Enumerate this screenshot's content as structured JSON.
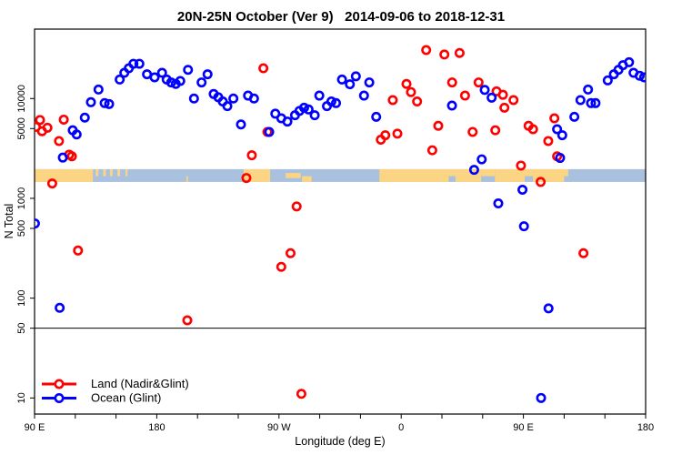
{
  "title": "20N-25N October (Ver 9)   2014-09-06 to 2018-12-31",
  "chart_data": {
    "type": "scatter",
    "xlabel": "Longitude (deg E)",
    "ylabel": "N Total",
    "x_axis": {
      "domain": [
        90,
        540
      ],
      "minor_tick_step": 30,
      "major_ticks": [
        {
          "lon": 90,
          "label": "90 E"
        },
        {
          "lon": 180,
          "label": "180"
        },
        {
          "lon": 270,
          "label": "90 W"
        },
        {
          "lon": 360,
          "label": "0"
        },
        {
          "lon": 450,
          "label": "90 E"
        },
        {
          "lon": 540,
          "label": "180"
        }
      ]
    },
    "y_axis": {
      "scale": "log",
      "domain": [
        6.9,
        49600
      ],
      "ticks": [
        {
          "v": 10000,
          "label": "10000"
        },
        {
          "v": 5000,
          "label": "5000"
        },
        {
          "v": 1000,
          "label": "1000"
        },
        {
          "v": 500,
          "label": "500"
        },
        {
          "v": 100,
          "label": "100"
        },
        {
          "v": 50,
          "label": "50"
        },
        {
          "v": 10,
          "label": "10"
        }
      ]
    },
    "reference_line": {
      "value": 50,
      "color": "#000000"
    },
    "land_ocean_band": {
      "value_range": [
        1460,
        1960
      ],
      "ocean_color": "#a9c0de",
      "land_color": "#fbd583",
      "land_segments": [
        {
          "from": 90,
          "to": 133,
          "part": "full"
        },
        {
          "from": 135,
          "to": 137,
          "part": "top"
        },
        {
          "from": 140.5,
          "to": 142.5,
          "part": "top"
        },
        {
          "from": 145.5,
          "to": 147.5,
          "part": "top"
        },
        {
          "from": 151,
          "to": 153,
          "part": "top"
        },
        {
          "from": 157,
          "to": 158.5,
          "part": "top"
        },
        {
          "from": 201.8,
          "to": 203,
          "part": "bottom"
        },
        {
          "from": 244,
          "to": 263.5,
          "part": "full"
        },
        {
          "from": 275,
          "to": 286,
          "part": "middle"
        },
        {
          "from": 287,
          "to": 294,
          "part": "bottom"
        },
        {
          "from": 344,
          "to": 395,
          "part": "full"
        },
        {
          "from": 395,
          "to": 400,
          "part": "top"
        },
        {
          "from": 400,
          "to": 419,
          "part": "full"
        },
        {
          "from": 419,
          "to": 429,
          "part": "top"
        },
        {
          "from": 429,
          "to": 451,
          "part": "full"
        },
        {
          "from": 451,
          "to": 457,
          "part": "top"
        },
        {
          "from": 457,
          "to": 480,
          "part": "full"
        },
        {
          "from": 480,
          "to": 483,
          "part": "top"
        }
      ]
    },
    "series": [
      {
        "name": "Land (Nadir&Glint)",
        "color": "#ff0000",
        "points": [
          [
            91,
            5200
          ],
          [
            94,
            6100
          ],
          [
            95.5,
            4700
          ],
          [
            99.5,
            5100
          ],
          [
            108,
            3750
          ],
          [
            111.5,
            6150
          ],
          [
            115.5,
            2740
          ],
          [
            117.5,
            2640
          ],
          [
            103,
            1410
          ],
          [
            122,
            300
          ],
          [
            202.5,
            60
          ],
          [
            246,
            1600
          ],
          [
            250,
            2700
          ],
          [
            258.5,
            20100
          ],
          [
            261.5,
            4630
          ],
          [
            271.7,
            206
          ],
          [
            278.5,
            282
          ],
          [
            283,
            830
          ],
          [
            286.5,
            11
          ],
          [
            345,
            3870
          ],
          [
            348.3,
            4290
          ],
          [
            353.8,
            9650
          ],
          [
            357.2,
            4450
          ],
          [
            363.9,
            14000
          ],
          [
            367.2,
            11600
          ],
          [
            371.7,
            9340
          ],
          [
            378.4,
            30600
          ],
          [
            382.9,
            3030
          ],
          [
            387.3,
            5330
          ],
          [
            391.8,
            27600
          ],
          [
            397.5,
            14500
          ],
          [
            403,
            28600
          ],
          [
            407,
            10700
          ],
          [
            412.6,
            4630
          ],
          [
            417,
            14500
          ],
          [
            429.3,
            4810
          ],
          [
            430.2,
            11800
          ],
          [
            434.9,
            10900
          ],
          [
            436,
            8090
          ],
          [
            442.7,
            9650
          ],
          [
            448.2,
            2130
          ],
          [
            453.8,
            5330
          ],
          [
            457.1,
            4930
          ],
          [
            462.7,
            1460
          ],
          [
            468.3,
            3750
          ],
          [
            472.8,
            6340
          ],
          [
            474.8,
            2640
          ],
          [
            494.2,
            282
          ]
        ]
      },
      {
        "name": "Ocean (Glint)",
        "color": "#0000ff",
        "points": [
          [
            90.3,
            560
          ],
          [
            108.5,
            80
          ],
          [
            110.8,
            2560
          ],
          [
            118.1,
            4810
          ],
          [
            121,
            4370
          ],
          [
            127,
            6440
          ],
          [
            131.5,
            9190
          ],
          [
            137.1,
            12300
          ],
          [
            141.6,
            9000
          ],
          [
            144.9,
            8810
          ],
          [
            152.7,
            15500
          ],
          [
            156.1,
            18100
          ],
          [
            159.4,
            20100
          ],
          [
            162.8,
            22300
          ],
          [
            167.2,
            22300
          ],
          [
            172.8,
            17500
          ],
          [
            178.4,
            16300
          ],
          [
            183.9,
            18100
          ],
          [
            187.3,
            15500
          ],
          [
            190.6,
            14500
          ],
          [
            194,
            14000
          ],
          [
            197.3,
            15000
          ],
          [
            203,
            19400
          ],
          [
            207.4,
            10000
          ],
          [
            213,
            14500
          ],
          [
            217.4,
            17500
          ],
          [
            221.9,
            11100
          ],
          [
            225.3,
            10300
          ],
          [
            228.6,
            9340
          ],
          [
            232,
            8390
          ],
          [
            236.4,
            10000
          ],
          [
            242,
            5500
          ],
          [
            247.2,
            10700
          ],
          [
            251.6,
            10000
          ],
          [
            262.8,
            4630
          ],
          [
            267.3,
            7050
          ],
          [
            271.7,
            6340
          ],
          [
            276.2,
            5880
          ],
          [
            281.8,
            6800
          ],
          [
            285.1,
            7520
          ],
          [
            288.5,
            8090
          ],
          [
            291.8,
            7770
          ],
          [
            296.3,
            6800
          ],
          [
            299.7,
            10700
          ],
          [
            305.3,
            8390
          ],
          [
            308.6,
            9340
          ],
          [
            312,
            9000
          ],
          [
            316.4,
            15500
          ],
          [
            322.2,
            13900
          ],
          [
            326.6,
            16700
          ],
          [
            332.6,
            10700
          ],
          [
            336.5,
            14500
          ],
          [
            341.6,
            6560
          ],
          [
            397.4,
            8500
          ],
          [
            413.7,
            1930
          ],
          [
            419.3,
            2460
          ],
          [
            421.5,
            12200
          ],
          [
            426.6,
            10200
          ],
          [
            431.5,
            890
          ],
          [
            449.3,
            1220
          ],
          [
            450.4,
            525
          ],
          [
            463,
            10
          ],
          [
            468.5,
            79
          ],
          [
            474.8,
            4930
          ],
          [
            477,
            2540
          ],
          [
            478.6,
            4290
          ],
          [
            487.5,
            6560
          ],
          [
            492,
            9650
          ],
          [
            497.6,
            12300
          ],
          [
            499.8,
            9000
          ],
          [
            503.1,
            9000
          ],
          [
            512.1,
            15200
          ],
          [
            516.6,
            17500
          ],
          [
            520,
            19400
          ],
          [
            523.3,
            21600
          ],
          [
            527.8,
            23100
          ],
          [
            531.1,
            18100
          ],
          [
            535.6,
            16900
          ],
          [
            538.9,
            16300
          ]
        ]
      }
    ],
    "legend": {
      "position": "bottom-left"
    }
  }
}
